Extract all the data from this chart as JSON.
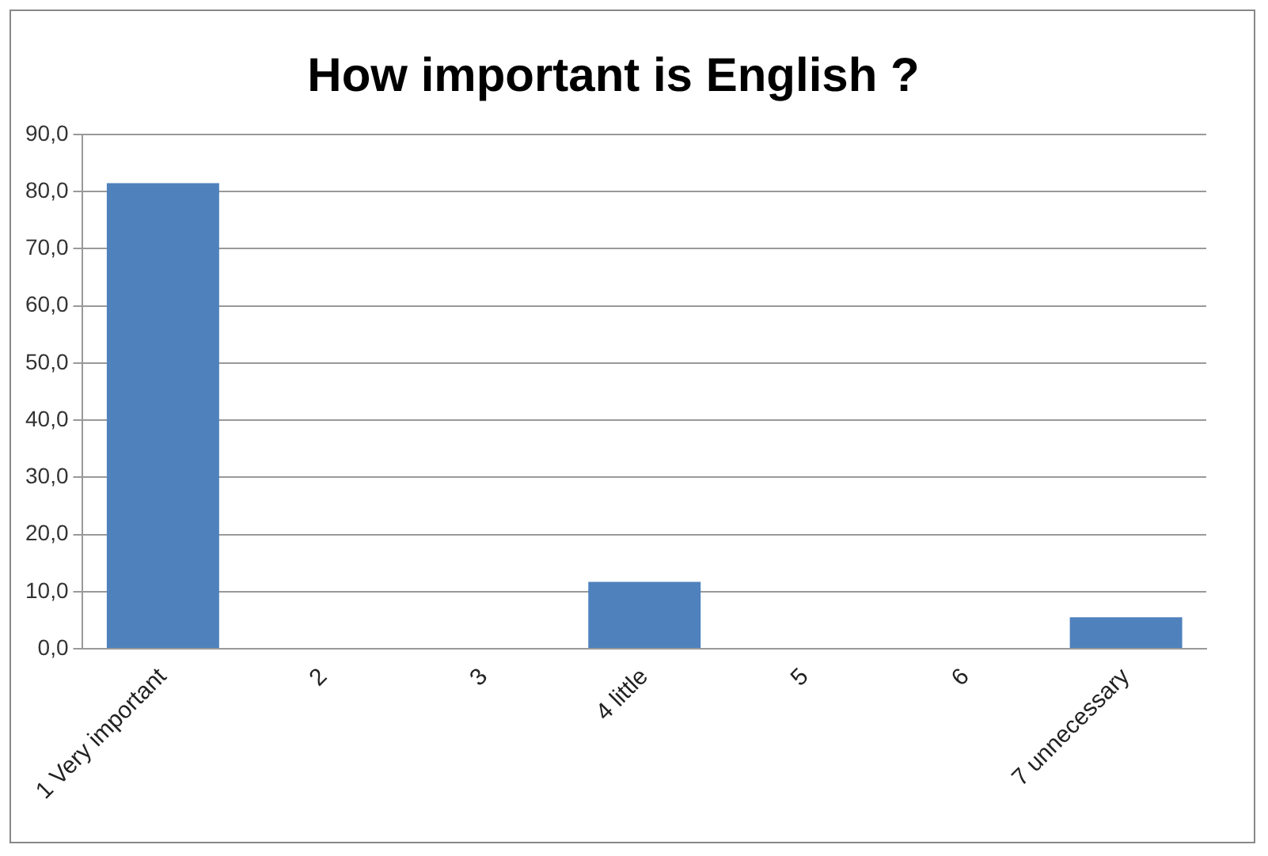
{
  "chart_data": {
    "type": "bar",
    "title": "How important is English ?",
    "categories": [
      "1 Very important",
      "2",
      "3",
      "4 little",
      "5",
      "6",
      "7 unnecessary"
    ],
    "values": [
      81.5,
      0,
      0,
      11.7,
      0,
      0,
      5.5
    ],
    "color": "#4f81bd",
    "ylim": [
      0,
      90
    ],
    "yticks": [
      {
        "value": 0,
        "label": "0,0"
      },
      {
        "value": 10,
        "label": "10,0"
      },
      {
        "value": 20,
        "label": "20,0"
      },
      {
        "value": 30,
        "label": "30,0"
      },
      {
        "value": 40,
        "label": "40,0"
      },
      {
        "value": 50,
        "label": "50,0"
      },
      {
        "value": 60,
        "label": "60,0"
      },
      {
        "value": 70,
        "label": "70,0"
      },
      {
        "value": 80,
        "label": "80,0"
      },
      {
        "value": 90,
        "label": "90,0"
      }
    ],
    "grid": "y",
    "legend": false
  }
}
